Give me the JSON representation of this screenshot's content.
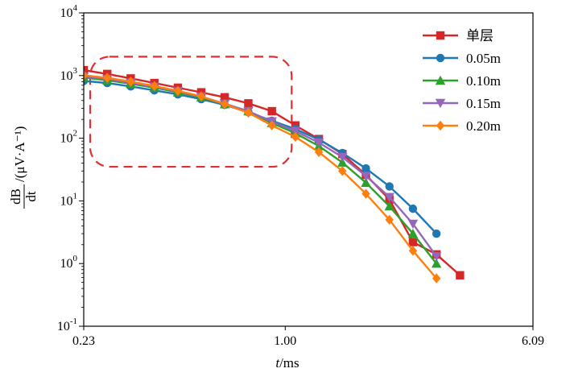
{
  "chart_data": {
    "type": "line",
    "xscale": "log",
    "yscale": "log",
    "xlim": [
      0.23,
      6.09
    ],
    "ylim": [
      0.1,
      10000
    ],
    "x_ticks": [
      {
        "value": 0.23,
        "label": "0.23"
      },
      {
        "value": 1.0,
        "label": "1.00"
      },
      {
        "value": 6.09,
        "label": "6.09"
      }
    ],
    "y_ticks": [
      {
        "value": 0.1,
        "base": "10",
        "exp": "-1"
      },
      {
        "value": 1,
        "base": "10",
        "exp": "0"
      },
      {
        "value": 10,
        "base": "10",
        "exp": "1"
      },
      {
        "value": 100,
        "base": "10",
        "exp": "2"
      },
      {
        "value": 1000,
        "base": "10",
        "exp": "3"
      },
      {
        "value": 10000,
        "base": "10",
        "exp": "4"
      }
    ],
    "xlabel": {
      "var": "t",
      "unit": "/ms"
    },
    "ylabel": {
      "num": "dB",
      "den": "dt",
      "unit": "/(μV·A⁻¹)"
    },
    "legend_position": "top-right",
    "highlight_region": {
      "x": [
        0.23,
        1.0
      ],
      "y": [
        35,
        2000
      ],
      "color": "#e03030"
    },
    "x": [
      0.23,
      0.273,
      0.324,
      0.385,
      0.457,
      0.542,
      0.643,
      0.764,
      0.907,
      1.077,
      1.278,
      1.517,
      1.801,
      2.138,
      2.538,
      3.013,
      3.577,
      4.247,
      5.042,
      6.09
    ],
    "series": [
      {
        "name": "单层",
        "color": "#d62728",
        "marker": "square",
        "values": [
          1220,
          1060,
          900,
          760,
          640,
          540,
          450,
          360,
          270,
          160,
          97,
          56,
          26,
          10.5,
          2.2,
          1.4,
          0.65,
          null,
          null,
          null
        ]
      },
      {
        "name": "0.05m",
        "color": "#1f77b4",
        "marker": "circle",
        "values": [
          820,
          760,
          670,
          580,
          500,
          420,
          340,
          260,
          190,
          140,
          95,
          58,
          33,
          17,
          7.5,
          3.0,
          null,
          null,
          null,
          null
        ]
      },
      {
        "name": "0.10m",
        "color": "#2ca02c",
        "marker": "triangle-up",
        "values": [
          930,
          840,
          740,
          640,
          540,
          450,
          350,
          270,
          175,
          120,
          75,
          41,
          19.5,
          8.2,
          3.0,
          1.0,
          null,
          null,
          null,
          null
        ]
      },
      {
        "name": "0.15m",
        "color": "#9467bd",
        "marker": "triangle-down",
        "values": [
          960,
          880,
          770,
          660,
          560,
          460,
          355,
          270,
          185,
          130,
          85,
          50,
          25,
          11.5,
          4.3,
          1.3,
          null,
          null,
          null,
          null
        ]
      },
      {
        "name": "0.20m",
        "color": "#ff7f0e",
        "marker": "diamond",
        "values": [
          1010,
          920,
          800,
          680,
          570,
          465,
          350,
          255,
          160,
          105,
          60,
          30,
          13,
          5.0,
          1.6,
          0.58,
          null,
          null,
          null,
          null
        ]
      }
    ]
  }
}
